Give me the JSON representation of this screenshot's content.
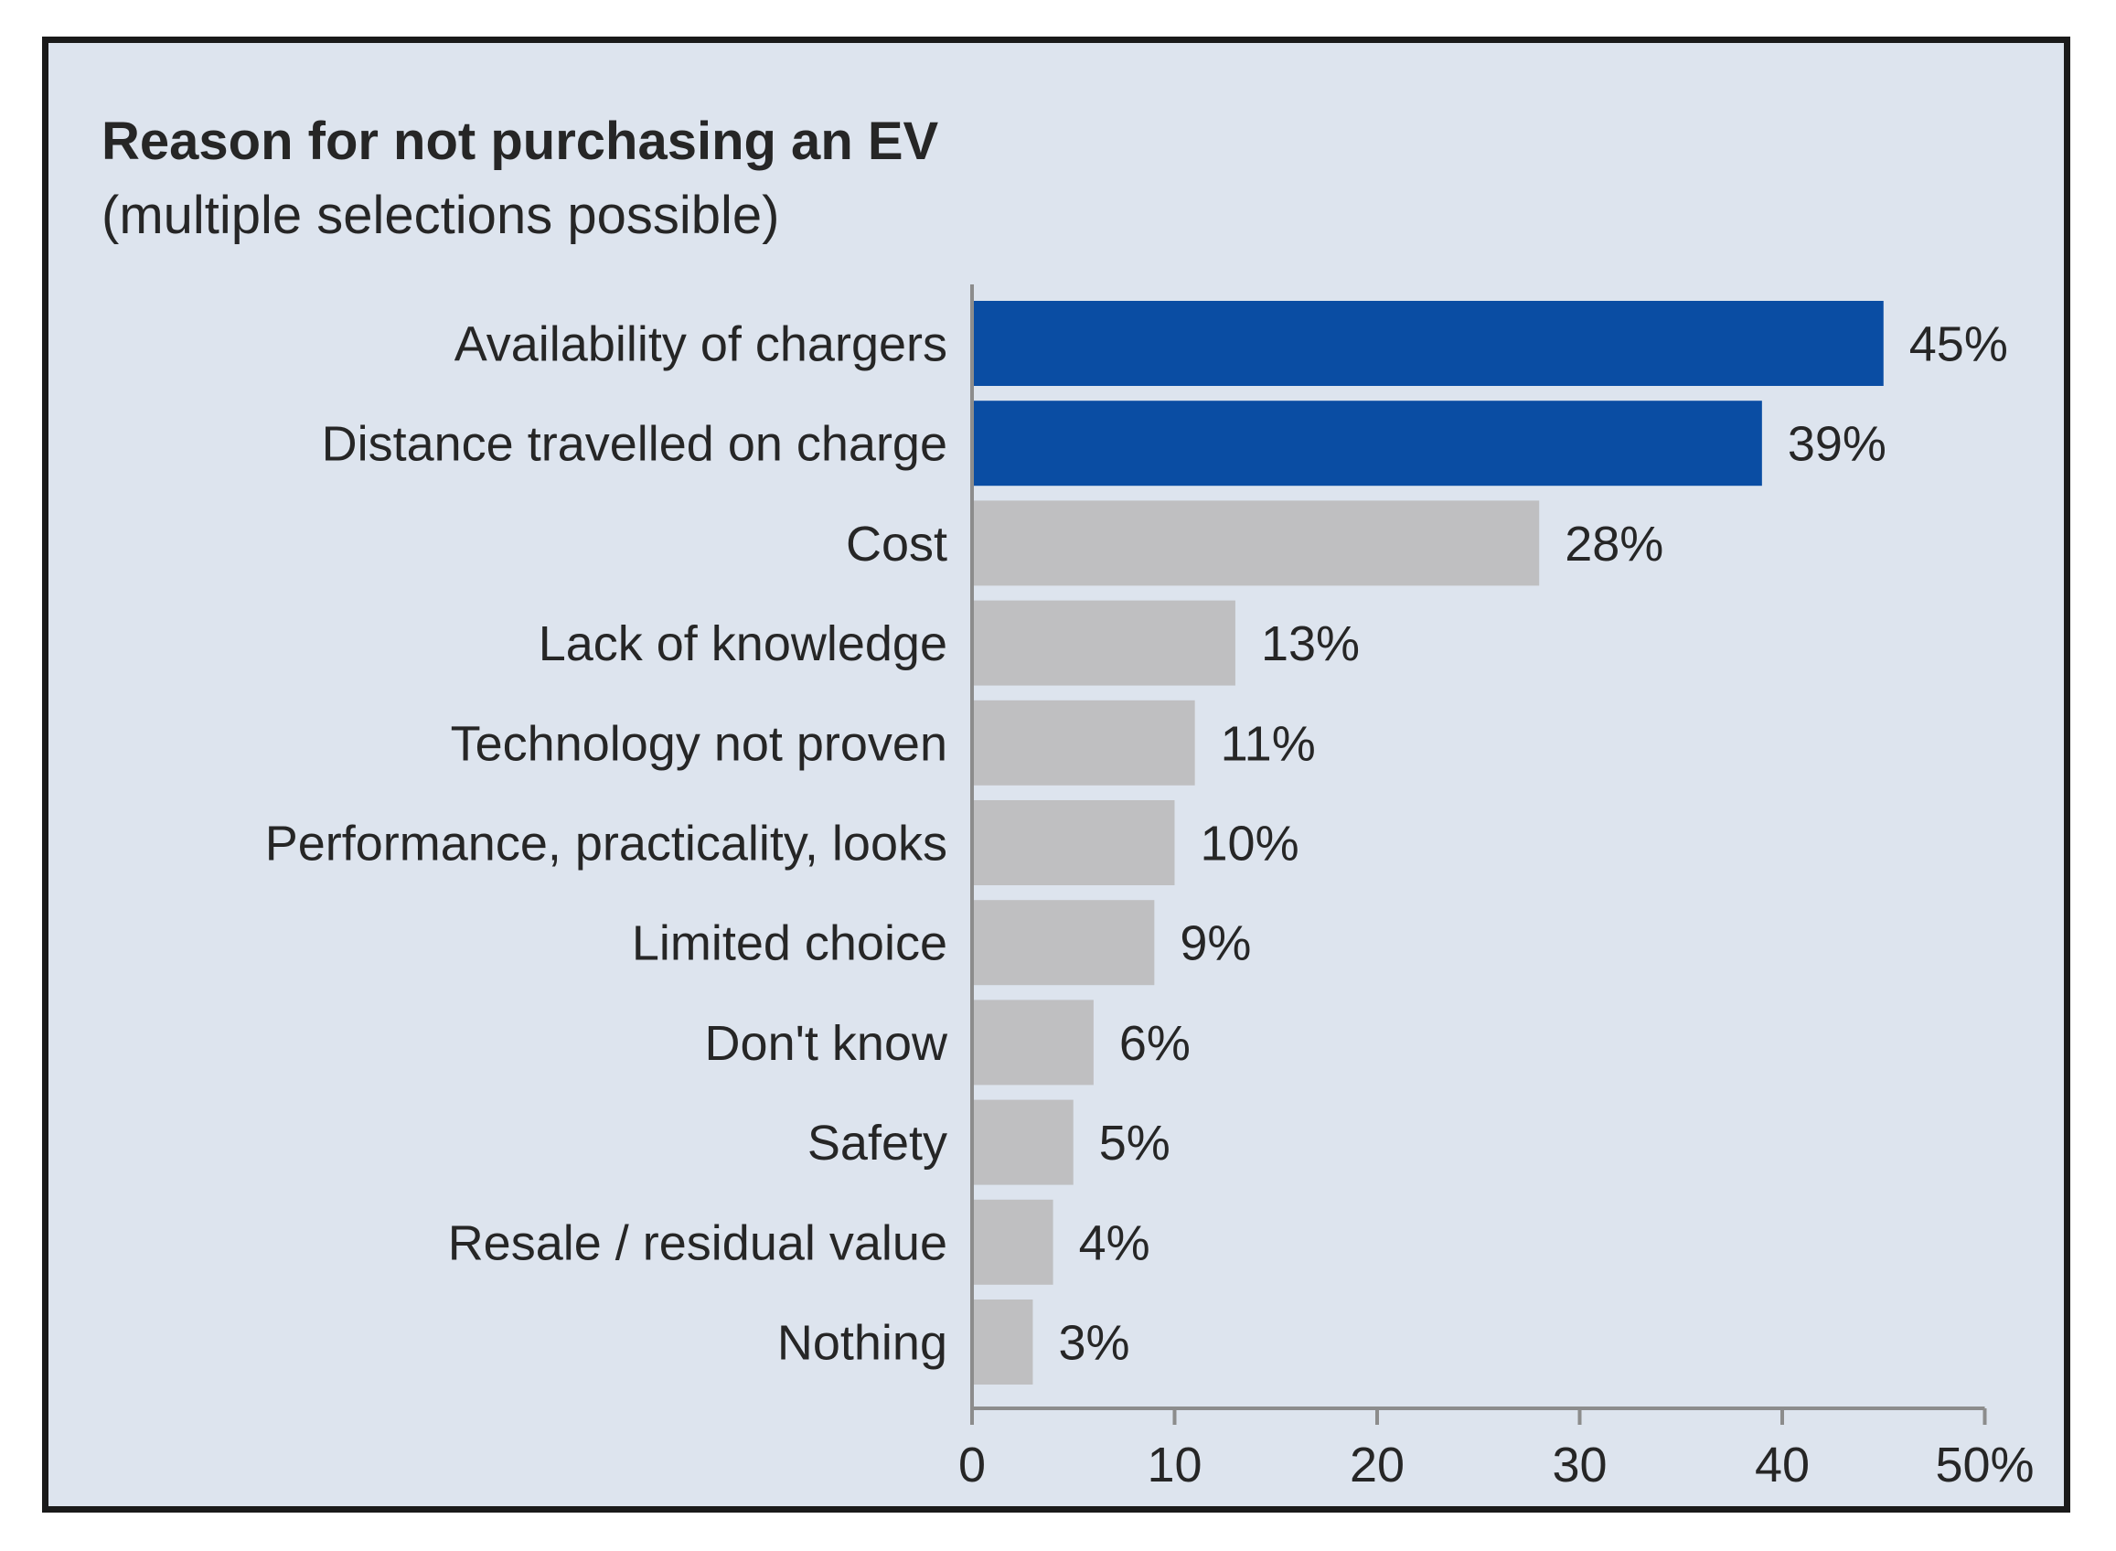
{
  "chart_data": {
    "type": "bar",
    "orientation": "horizontal",
    "title": "Reason for not purchasing an EV",
    "subtitle": "(multiple selections possible)",
    "categories": [
      "Availability of chargers",
      "Distance travelled on charge",
      "Cost",
      "Lack of knowledge",
      "Technology not proven",
      "Performance, practicality, looks",
      "Limited choice",
      "Don't know",
      "Safety",
      "Resale / residual value",
      "Nothing"
    ],
    "values": [
      45,
      39,
      28,
      13,
      11,
      10,
      9,
      6,
      5,
      4,
      3
    ],
    "value_labels": [
      "45%",
      "39%",
      "28%",
      "13%",
      "11%",
      "10%",
      "9%",
      "6%",
      "5%",
      "4%",
      "3%"
    ],
    "highlight": [
      true,
      true,
      false,
      false,
      false,
      false,
      false,
      false,
      false,
      false,
      false
    ],
    "xlim": [
      0,
      50
    ],
    "xticks": [
      0,
      10,
      20,
      30,
      40,
      50
    ],
    "xtick_labels": [
      "0",
      "10",
      "20",
      "30",
      "40",
      "50%"
    ],
    "xlabel": "",
    "ylabel": "",
    "grid": false
  },
  "colors": {
    "background": "#dde4ee",
    "highlight_bar": "#0a4da3",
    "normal_bar": "#bfbfc1",
    "axis": "#8c8c8c",
    "text": "#262626"
  }
}
